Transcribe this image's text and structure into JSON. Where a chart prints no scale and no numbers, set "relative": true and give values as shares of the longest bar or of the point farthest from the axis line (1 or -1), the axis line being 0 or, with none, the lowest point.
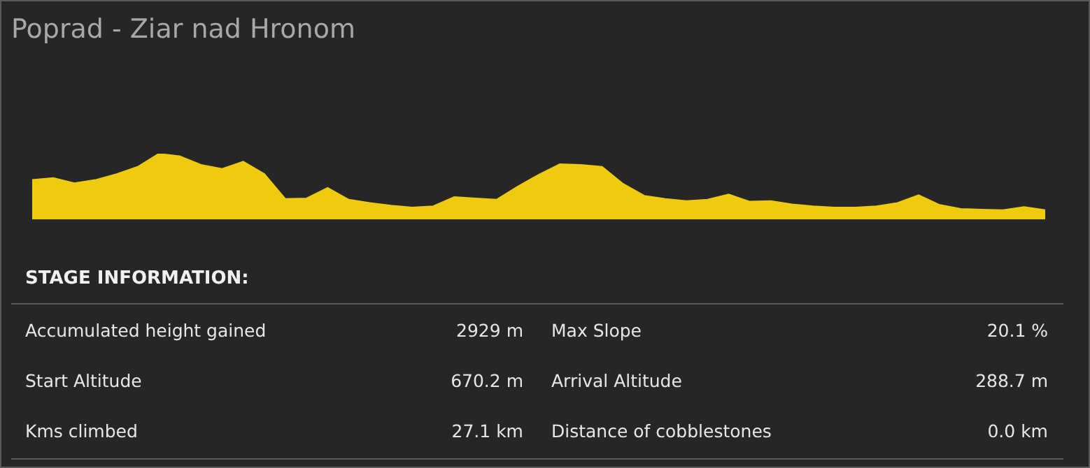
{
  "chart_data": [
    {
      "type": "area",
      "title": "Poprad - Ziar nad Hronom",
      "relative": true,
      "color": "#efcb10",
      "categories": [
        null,
        null,
        null,
        null,
        null,
        null,
        null,
        null,
        null,
        null,
        null,
        null,
        null,
        null,
        null,
        null,
        null,
        null,
        null,
        null,
        null,
        null,
        null,
        null,
        null,
        null,
        null,
        null,
        null,
        null,
        null,
        null,
        null,
        null,
        null,
        null,
        null,
        null,
        null,
        null,
        null,
        null,
        null,
        null,
        null,
        null,
        null,
        null,
        null
      ],
      "values": [
        0.6,
        0.63,
        0.55,
        0.6,
        0.69,
        0.8,
        1,
        0.96,
        0.83,
        0.77,
        0.88,
        0.69,
        0.31,
        0.32,
        0.48,
        0.3,
        0.25,
        0.21,
        0.18,
        0.2,
        0.34,
        0.32,
        0.3,
        0.5,
        0.68,
        0.84,
        0.83,
        0.8,
        0.54,
        0.36,
        0.31,
        0.28,
        0.3,
        0.38,
        0.27,
        0.28,
        0.23,
        0.2,
        0.18,
        0.18,
        0.2,
        0.25,
        0.37,
        0.22,
        0.16,
        0.15,
        0.14,
        0.19,
        0.14
      ]
    },
    {
      "type": "other",
      "title": "STAGE INFORMATION:",
      "annotations": [
        "Accumulated height gained",
        "2929 m",
        "Max Slope",
        "20.1 %",
        "Start Altitude",
        "670.2 m",
        "Arrival Altitude",
        "288.7 m",
        "Kms climbed",
        "27.1 km",
        "Distance of cobblestones",
        "0.0 km"
      ]
    }
  ]
}
